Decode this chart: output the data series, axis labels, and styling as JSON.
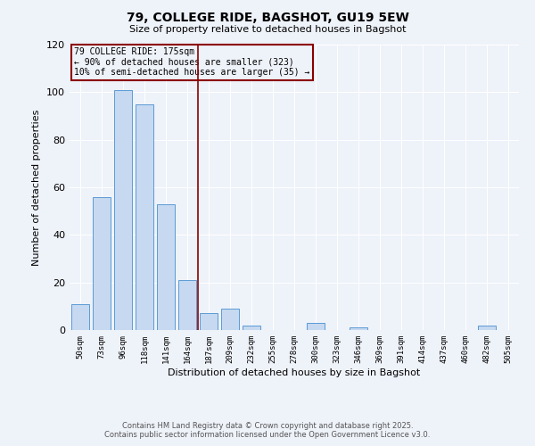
{
  "title": "79, COLLEGE RIDE, BAGSHOT, GU19 5EW",
  "subtitle": "Size of property relative to detached houses in Bagshot",
  "xlabel": "Distribution of detached houses by size in Bagshot",
  "ylabel": "Number of detached properties",
  "bar_labels": [
    "50sqm",
    "73sqm",
    "96sqm",
    "118sqm",
    "141sqm",
    "164sqm",
    "187sqm",
    "209sqm",
    "232sqm",
    "255sqm",
    "278sqm",
    "300sqm",
    "323sqm",
    "346sqm",
    "369sqm",
    "391sqm",
    "414sqm",
    "437sqm",
    "460sqm",
    "482sqm",
    "505sqm"
  ],
  "bar_values": [
    11,
    56,
    101,
    95,
    53,
    21,
    7,
    9,
    2,
    0,
    0,
    3,
    0,
    1,
    0,
    0,
    0,
    0,
    0,
    2,
    0
  ],
  "bar_color": "#c6d9f0",
  "bar_edge_color": "#5b9bd5",
  "vline_x": 5.5,
  "vline_color": "#8B0000",
  "annotation_lines": [
    "79 COLLEGE RIDE: 175sqm",
    "← 90% of detached houses are smaller (323)",
    "10% of semi-detached houses are larger (35) →"
  ],
  "annotation_box_color": "#8B0000",
  "ylim": [
    0,
    120
  ],
  "yticks": [
    0,
    20,
    40,
    60,
    80,
    100,
    120
  ],
  "footer_line1": "Contains HM Land Registry data © Crown copyright and database right 2025.",
  "footer_line2": "Contains public sector information licensed under the Open Government Licence v3.0.",
  "bg_color": "#eef2f9",
  "grid_color": "#ffffff"
}
